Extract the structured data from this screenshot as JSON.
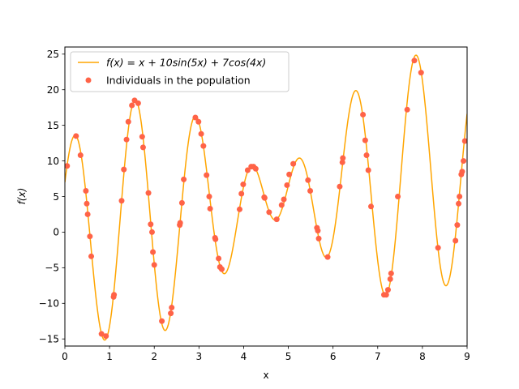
{
  "chart_data": {
    "type": "scatter",
    "title": "",
    "xlabel": "x",
    "ylabel": "f(x)",
    "xlim": [
      0,
      9
    ],
    "ylim": [
      -16,
      26
    ],
    "xticks": [
      0,
      1,
      2,
      3,
      4,
      5,
      6,
      7,
      8,
      9
    ],
    "yticks": [
      -15,
      -10,
      -5,
      0,
      5,
      10,
      15,
      20,
      25
    ],
    "grid": false,
    "legend_position": "upper-left",
    "series": [
      {
        "name": "f(x) = x + 10sin(5x) + 7cos(4x)",
        "kind": "line",
        "color": "#ffa500",
        "function": "x + 10sin(5x) + 7cos(4x)"
      },
      {
        "name": "Individuals in the population",
        "kind": "scatter",
        "color": "#ff6347",
        "x": [
          0.05,
          0.25,
          0.35,
          0.47,
          0.49,
          0.51,
          0.56,
          0.59,
          0.82,
          0.92,
          1.09,
          1.1,
          1.27,
          1.32,
          1.38,
          1.42,
          1.5,
          1.56,
          1.64,
          1.73,
          1.75,
          1.87,
          1.92,
          1.95,
          1.97,
          2.0,
          2.17,
          2.37,
          2.39,
          2.57,
          2.58,
          2.62,
          2.66,
          2.92,
          2.99,
          3.05,
          3.1,
          3.17,
          3.23,
          3.25,
          3.36,
          3.37,
          3.44,
          3.47,
          3.51,
          3.91,
          3.95,
          3.99,
          4.09,
          4.17,
          4.22,
          4.27,
          4.46,
          4.47,
          4.57,
          4.74,
          4.85,
          4.9,
          4.97,
          5.02,
          5.11,
          5.44,
          5.49,
          5.64,
          5.66,
          5.68,
          5.88,
          6.15,
          6.21,
          6.22,
          6.67,
          6.72,
          6.75,
          6.79,
          6.85,
          7.14,
          7.19,
          7.23,
          7.28,
          7.3,
          7.45,
          7.66,
          7.82,
          7.97,
          8.35,
          8.74,
          8.78,
          8.81,
          8.83,
          8.87,
          8.89,
          8.92,
          8.95
        ],
        "y": [
          9.3,
          13.5,
          10.8,
          5.8,
          4.0,
          2.5,
          -0.6,
          -3.4,
          -14.3,
          -14.6,
          -9.1,
          -8.8,
          4.4,
          8.8,
          13.0,
          15.5,
          17.8,
          18.5,
          18.1,
          13.4,
          11.9,
          5.5,
          1.1,
          0.0,
          -2.8,
          -4.6,
          -12.5,
          -11.4,
          -10.6,
          1.0,
          1.3,
          4.1,
          7.4,
          16.1,
          15.5,
          13.8,
          12.1,
          8.0,
          5.0,
          3.3,
          -0.8,
          -1.0,
          -3.7,
          -4.9,
          -5.2,
          3.2,
          5.4,
          6.7,
          8.7,
          9.2,
          9.2,
          8.9,
          4.9,
          4.8,
          2.8,
          1.8,
          3.8,
          4.6,
          6.6,
          8.1,
          9.6,
          7.3,
          5.8,
          0.6,
          0.2,
          -0.9,
          -3.5,
          6.4,
          9.8,
          10.4,
          16.5,
          12.9,
          10.8,
          8.7,
          3.6,
          -8.8,
          -8.8,
          -8.1,
          -6.6,
          -5.8,
          5.0,
          17.2,
          24.1,
          22.4,
          -2.2,
          -1.2,
          1.0,
          4.0,
          5.0,
          8.1,
          8.5,
          10.0,
          12.8
        ]
      }
    ]
  }
}
